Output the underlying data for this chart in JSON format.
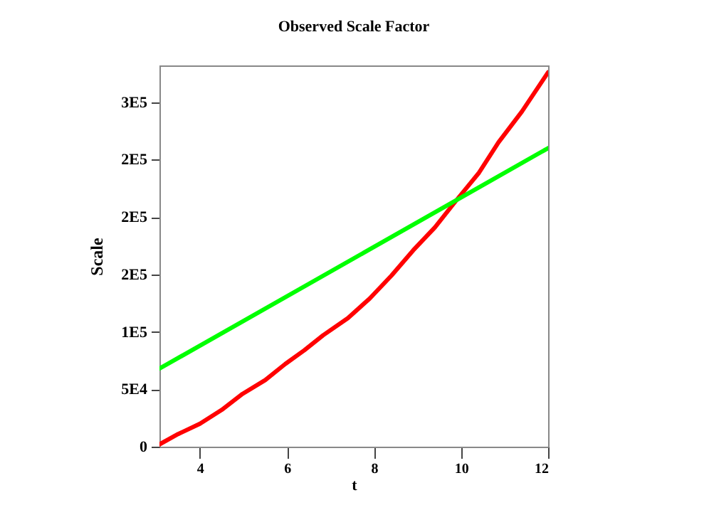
{
  "chart_data": {
    "type": "line",
    "title": "Observed Scale Factor",
    "xlabel": "t",
    "ylabel": "Scale",
    "xlim": [
      3.07,
      12
    ],
    "xticks": [
      4,
      6,
      8,
      10,
      12
    ],
    "ylim": [
      0,
      332000
    ],
    "yticks": [
      {
        "value": 0,
        "label": "0"
      },
      {
        "value": 50000,
        "label": "5E4"
      },
      {
        "value": 100000,
        "label": "1E5"
      },
      {
        "value": 150000,
        "label": "2E5"
      },
      {
        "value": 200000,
        "label": "2E5"
      },
      {
        "value": 250000,
        "label": "2E5"
      },
      {
        "value": 300000,
        "label": "3E5"
      }
    ],
    "grid": false,
    "series": [
      {
        "color": "#ff0000",
        "x": [
          3.07,
          3.5,
          4.0,
          4.5,
          4.98,
          5.5,
          5.96,
          6.4,
          6.83,
          7.4,
          7.9,
          8.4,
          8.9,
          9.4,
          9.88,
          10.4,
          10.86,
          11.4,
          12
        ],
        "values": [
          2000,
          11000,
          20000,
          32000,
          46000,
          58000,
          72000,
          84000,
          97000,
          112000,
          129000,
          149000,
          171000,
          191000,
          214000,
          238000,
          265000,
          292000,
          326000
        ]
      },
      {
        "color": "#00ff00",
        "x": [
          3.07,
          12
        ],
        "values": [
          68000,
          260000
        ]
      }
    ]
  }
}
